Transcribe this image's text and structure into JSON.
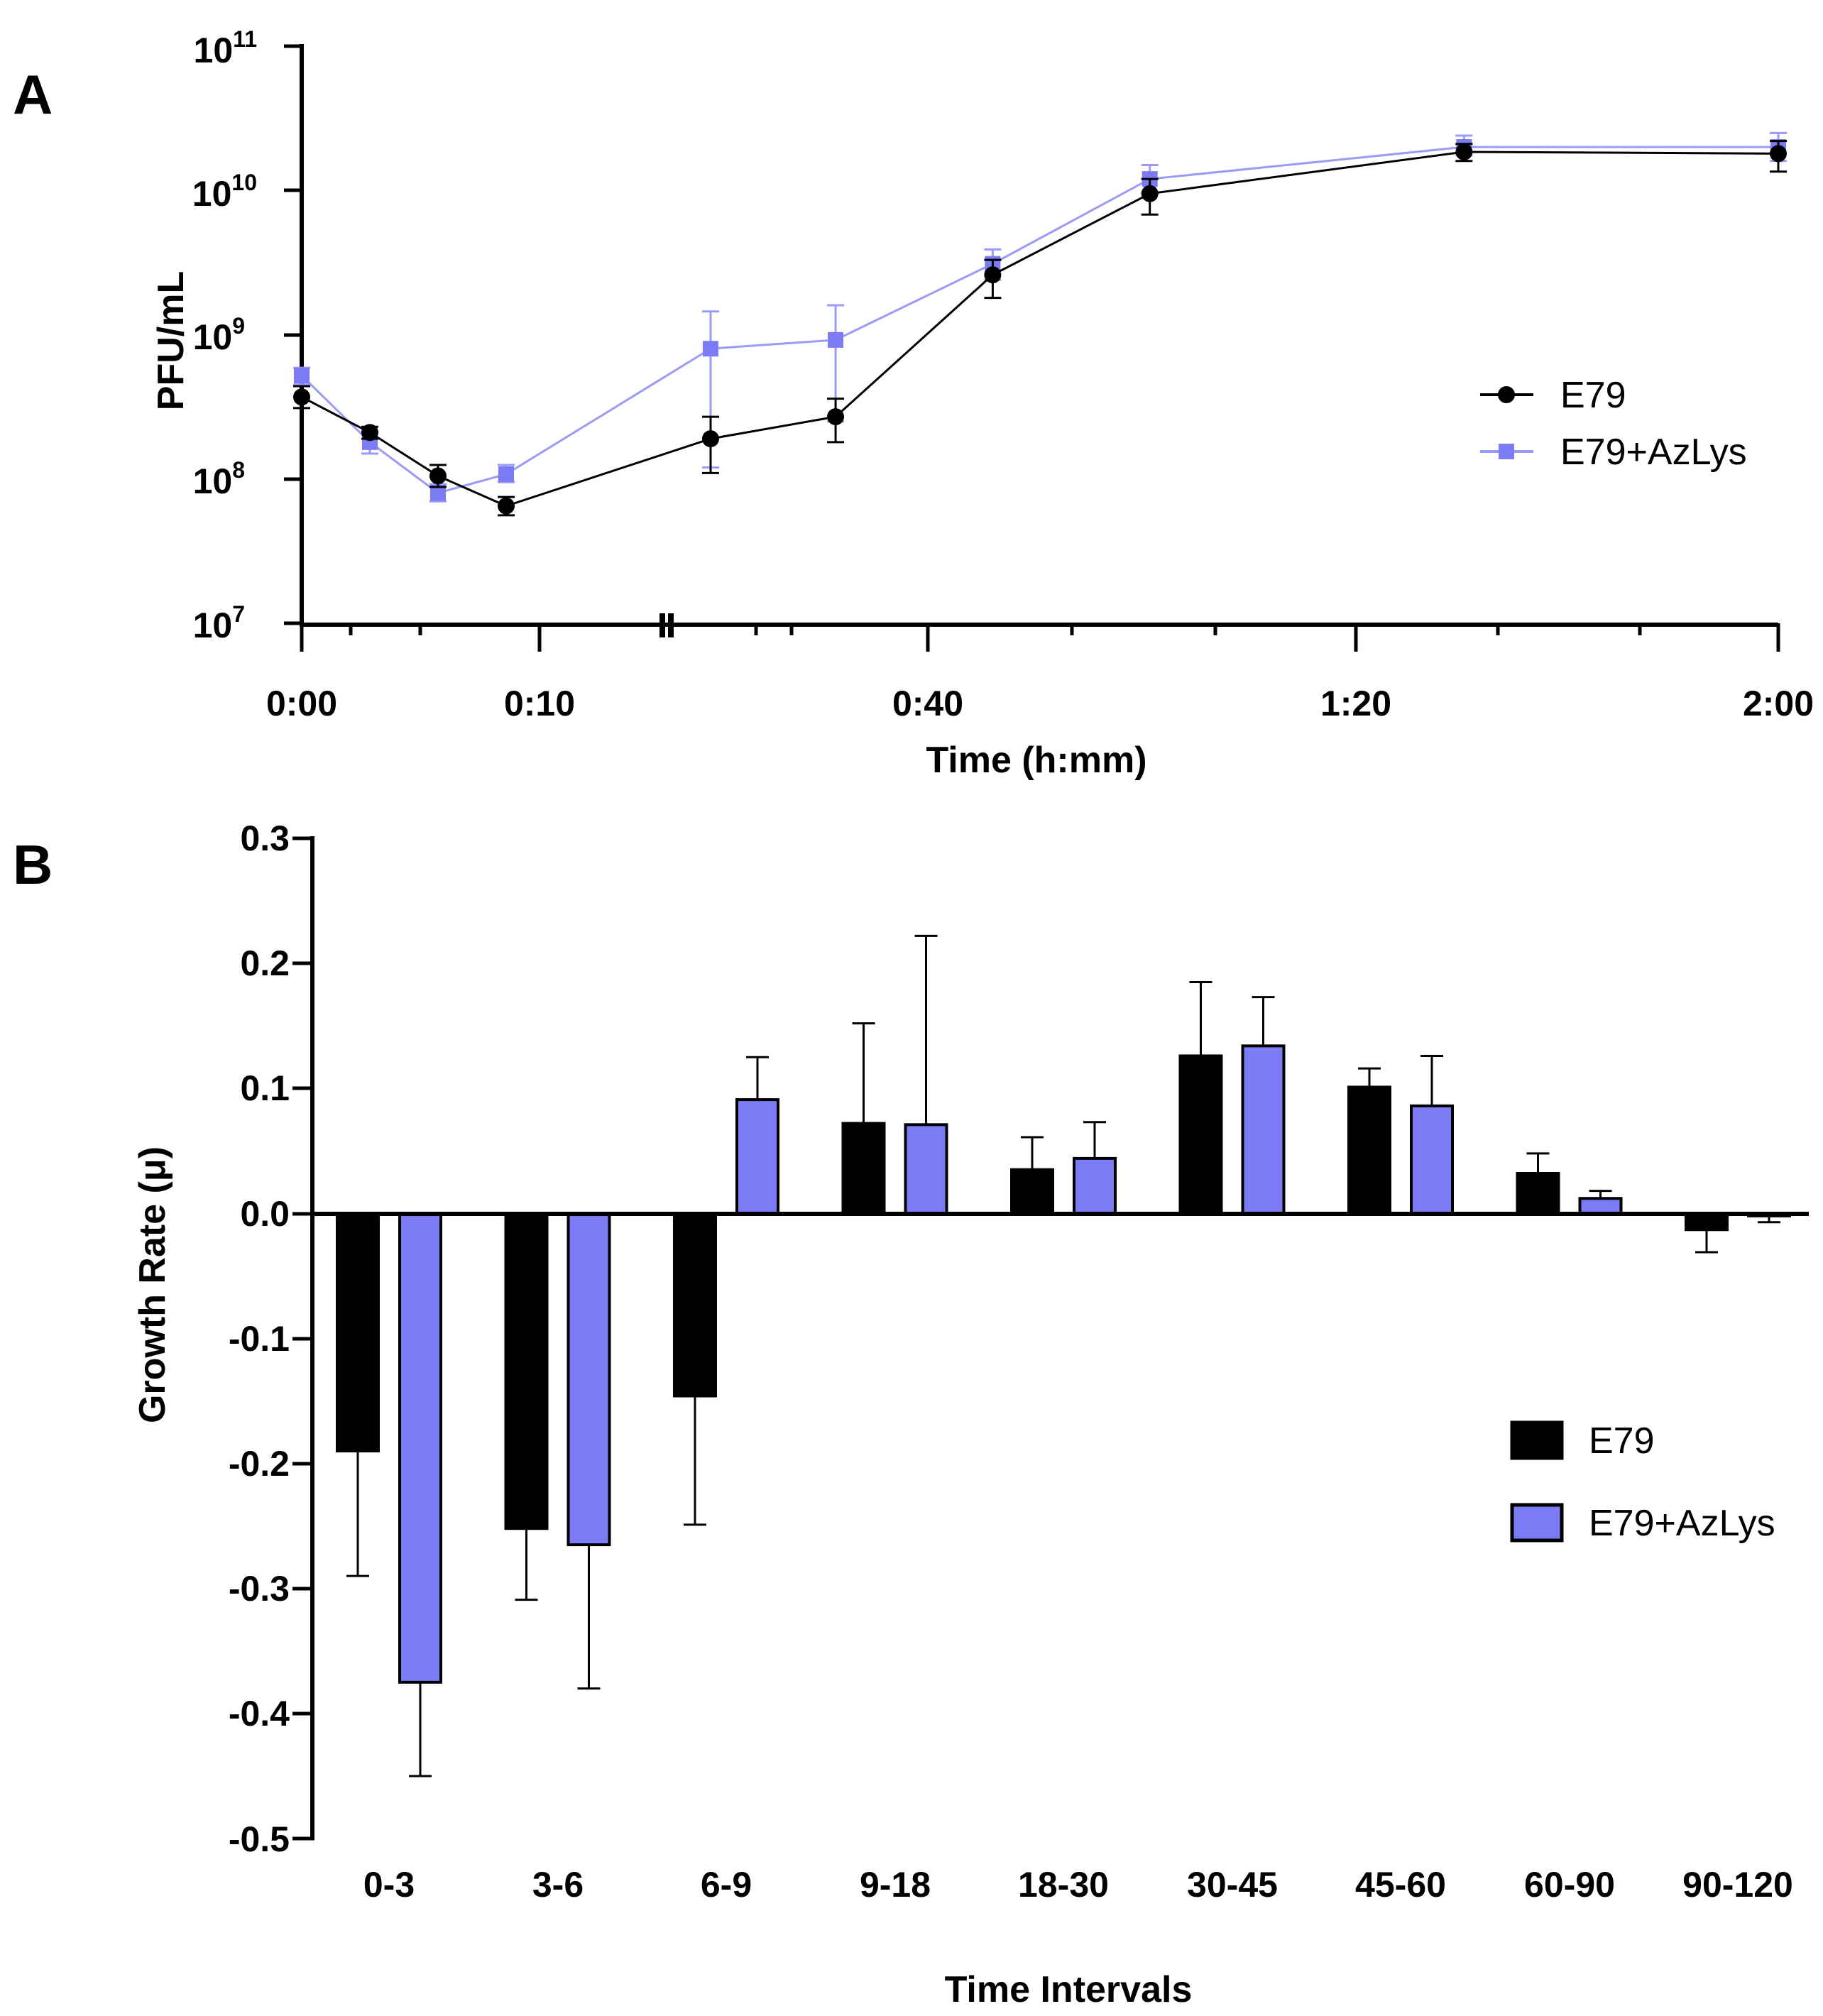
{
  "colors": {
    "e79": "#000000",
    "azlys": "#7b7bf5",
    "azlys_line": "#9a9af7"
  },
  "chart_data": [
    {
      "panel": "A",
      "type": "line",
      "ylabel": "PFU/mL",
      "xlabel": "Time (h:mm)",
      "yscale": "log",
      "ylim_exp": [
        7,
        11
      ],
      "y_ticks": [
        {
          "base": "10",
          "exp": "7"
        },
        {
          "base": "10",
          "exp": "8"
        },
        {
          "base": "10",
          "exp": "9"
        },
        {
          "base": "10",
          "exp": "10"
        },
        {
          "base": "10",
          "exp": "11"
        }
      ],
      "x_tick_labels": [
        "0:00",
        "0:10",
        "0:40",
        "1:20",
        "2:00"
      ],
      "series": [
        {
          "name": "E79",
          "marker": "circle",
          "x_min": [
            0,
            3,
            6,
            9,
            18,
            30,
            45,
            60,
            90,
            120
          ],
          "y": [
            370000000.0,
            210000000.0,
            105000000.0,
            65000000.0,
            190000000.0,
            270000000.0,
            2600000000.0,
            9500000000.0,
            18500000000.0,
            18000000000.0
          ],
          "err_low": [
            310000000.0,
            190000000.0,
            88000000.0,
            56000000.0,
            110000000.0,
            180000000.0,
            1800000000.0,
            6800000000.0,
            16000000000.0,
            13500000000.0
          ],
          "err_high": [
            440000000.0,
            230000000.0,
            125000000.0,
            75000000.0,
            270000000.0,
            360000000.0,
            3300000000.0,
            12000000000.0,
            21000000000.0,
            22000000000.0
          ]
        },
        {
          "name": "E79+AzLys",
          "marker": "square",
          "x_min": [
            0,
            3,
            6,
            9,
            18,
            30,
            45,
            60,
            90,
            120
          ],
          "y": [
            520000000.0,
            180000000.0,
            80000000.0,
            108000000.0,
            800000000.0,
            920000000.0,
            3100000000.0,
            12000000000.0,
            20000000000.0,
            20000000000.0
          ],
          "err_low": [
            450000000.0,
            150000000.0,
            70000000.0,
            95000000.0,
            120000000.0,
            250000000.0,
            2400000000.0,
            9500000000.0,
            17500000000.0,
            16000000000.0
          ],
          "err_high": [
            590000000.0,
            210000000.0,
            92000000.0,
            125000000.0,
            1450000000.0,
            1600000000.0,
            3900000000.0,
            15000000000.0,
            24000000000.0,
            25000000000.0
          ]
        }
      ]
    },
    {
      "panel": "B",
      "type": "bar",
      "ylabel": "Growth Rate (μ)",
      "xlabel": "Time Intervals",
      "ylim": [
        -0.5,
        0.3
      ],
      "y_ticks": [
        "0.3",
        "0.2",
        "0.1",
        "0.0",
        "-0.1",
        "-0.2",
        "-0.3",
        "-0.4",
        "-0.5"
      ],
      "categories": [
        "0-3",
        "3-6",
        "6-9",
        "9-18",
        "18-30",
        "30-45",
        "45-60",
        "60-90",
        "90-120"
      ],
      "series": [
        {
          "name": "E79",
          "values": [
            -0.19,
            -0.252,
            -0.146,
            0.072,
            0.035,
            0.126,
            0.101,
            0.032,
            -0.013
          ],
          "errors": [
            0.1,
            0.057,
            0.103,
            0.08,
            0.026,
            0.059,
            0.015,
            0.016,
            0.018
          ]
        },
        {
          "name": "E79+AzLys",
          "values": [
            -0.375,
            -0.265,
            0.091,
            0.071,
            0.044,
            0.134,
            0.086,
            0.012,
            -0.002
          ],
          "errors": [
            0.075,
            0.115,
            0.034,
            0.151,
            0.029,
            0.039,
            0.04,
            0.006,
            0.005
          ]
        }
      ]
    }
  ]
}
